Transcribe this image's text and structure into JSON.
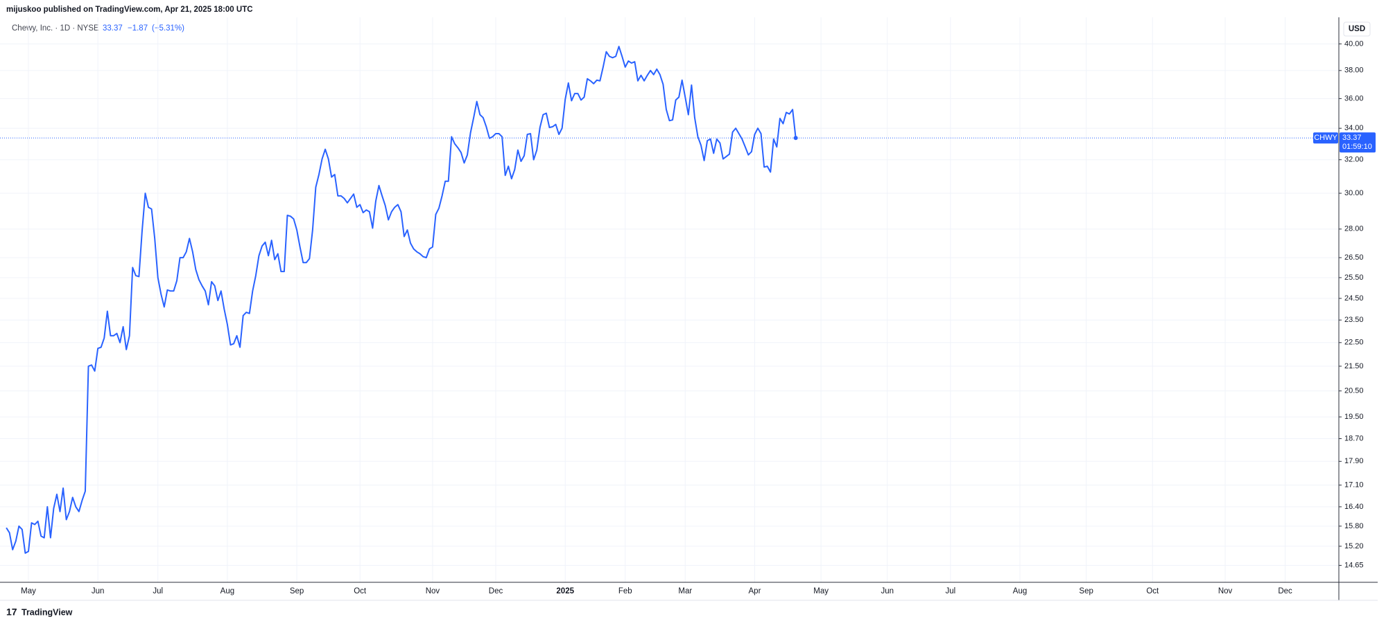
{
  "header": "mijuskoo published on TradingView.com, Apr 21, 2025 18:00 UTC",
  "legend": {
    "name": "Chewy, Inc. · 1D · NYSE",
    "last": "33.37",
    "change": "−1.87",
    "change_pct": "(−5.31%)"
  },
  "footer": "TradingView",
  "chart_data": {
    "type": "line",
    "log_scale": true,
    "grid": true,
    "currency": "USD",
    "price_label": {
      "value": "33.37",
      "countdown": "01:59:10"
    },
    "xlim": [
      -2,
      422
    ],
    "ylim": [
      14.18,
      42.1
    ],
    "xticks": [
      {
        "value": 7,
        "label": "May"
      },
      {
        "value": 29,
        "label": "Jun"
      },
      {
        "value": 48,
        "label": "Jul"
      },
      {
        "value": 70,
        "label": "Aug"
      },
      {
        "value": 92,
        "label": "Sep"
      },
      {
        "value": 112,
        "label": "Oct"
      },
      {
        "value": 135,
        "label": "Nov"
      },
      {
        "value": 155,
        "label": "Dec"
      },
      {
        "value": 177,
        "label": "2025"
      },
      {
        "value": 196,
        "label": "Feb"
      },
      {
        "value": 215,
        "label": "Mar"
      },
      {
        "value": 237,
        "label": "Apr"
      },
      {
        "value": 258,
        "label": "May"
      },
      {
        "value": 279,
        "label": "Jun"
      },
      {
        "value": 299,
        "label": "Jul"
      },
      {
        "value": 321,
        "label": "Aug"
      },
      {
        "value": 342,
        "label": "Sep"
      },
      {
        "value": 363,
        "label": "Oct"
      },
      {
        "value": 386,
        "label": "Nov"
      },
      {
        "value": 405,
        "label": "Dec"
      }
    ],
    "yticks": [
      {
        "value": 40,
        "label": "40.00"
      },
      {
        "value": 38,
        "label": "38.00"
      },
      {
        "value": 36,
        "label": "36.00"
      },
      {
        "value": 34,
        "label": "34.00"
      },
      {
        "value": 32,
        "label": "32.00"
      },
      {
        "value": 30,
        "label": "30.00"
      },
      {
        "value": 28,
        "label": "28.00"
      },
      {
        "value": 26.5,
        "label": "26.50"
      },
      {
        "value": 25.5,
        "label": "25.50"
      },
      {
        "value": 24.5,
        "label": "24.50"
      },
      {
        "value": 23.5,
        "label": "23.50"
      },
      {
        "value": 22.5,
        "label": "22.50"
      },
      {
        "value": 21.5,
        "label": "21.50"
      },
      {
        "value": 20.5,
        "label": "20.50"
      },
      {
        "value": 19.5,
        "label": "19.50"
      },
      {
        "value": 18.7,
        "label": "18.70"
      },
      {
        "value": 17.9,
        "label": "17.90"
      },
      {
        "value": 17.1,
        "label": "17.10"
      },
      {
        "value": 16.4,
        "label": "16.40"
      },
      {
        "value": 15.8,
        "label": "15.80"
      },
      {
        "value": 15.2,
        "label": "15.20"
      },
      {
        "value": 14.65,
        "label": "14.65"
      }
    ],
    "series": [
      {
        "name": "CHWY",
        "color": "#2962ff",
        "values": [
          15.75,
          15.6,
          15.1,
          15.35,
          15.8,
          15.7,
          15.0,
          15.05,
          15.9,
          15.85,
          15.95,
          15.5,
          15.45,
          16.4,
          15.45,
          16.35,
          16.8,
          16.25,
          17.0,
          16.0,
          16.25,
          16.7,
          16.4,
          16.25,
          16.6,
          16.9,
          21.5,
          21.55,
          21.3,
          22.25,
          22.3,
          22.7,
          23.9,
          22.8,
          22.8,
          22.9,
          22.5,
          23.2,
          22.2,
          22.8,
          26.0,
          25.6,
          25.55,
          27.9,
          30.0,
          29.2,
          29.1,
          27.5,
          25.5,
          24.7,
          24.1,
          24.9,
          24.85,
          24.85,
          25.35,
          26.5,
          26.5,
          26.8,
          27.5,
          26.8,
          25.9,
          25.4,
          25.1,
          24.85,
          24.2,
          25.3,
          25.1,
          24.4,
          24.85,
          24.0,
          23.3,
          22.4,
          22.45,
          22.8,
          22.3,
          23.7,
          23.85,
          23.8,
          24.85,
          25.6,
          26.6,
          27.1,
          27.3,
          26.6,
          27.4,
          26.4,
          26.7,
          25.8,
          25.8,
          28.75,
          28.7,
          28.55,
          27.95,
          27.05,
          26.25,
          26.25,
          26.45,
          27.95,
          30.35,
          31.1,
          32.05,
          32.65,
          32.05,
          30.95,
          31.1,
          29.85,
          29.85,
          29.7,
          29.45,
          29.7,
          29.95,
          29.2,
          29.35,
          28.9,
          29.05,
          28.95,
          28.05,
          29.55,
          30.45,
          29.85,
          29.3,
          28.5,
          28.95,
          29.2,
          29.35,
          28.95,
          27.6,
          27.95,
          27.25,
          26.95,
          26.8,
          26.7,
          26.55,
          26.5,
          26.95,
          27.05,
          28.8,
          29.15,
          29.85,
          30.7,
          30.7,
          33.45,
          33.0,
          32.75,
          32.45,
          31.8,
          32.3,
          33.7,
          34.7,
          35.8,
          34.9,
          34.7,
          34.1,
          33.35,
          33.45,
          33.65,
          33.65,
          33.45,
          31.05,
          31.6,
          30.85,
          31.4,
          32.6,
          31.9,
          32.25,
          33.6,
          33.65,
          32.0,
          32.6,
          34.05,
          34.9,
          35.0,
          34.05,
          34.1,
          34.25,
          33.6,
          34.0,
          35.95,
          37.1,
          35.85,
          36.35,
          36.35,
          35.9,
          36.1,
          37.4,
          37.25,
          37.05,
          37.3,
          37.25,
          38.25,
          39.4,
          39.05,
          38.95,
          39.05,
          39.8,
          39.05,
          38.25,
          38.7,
          38.55,
          38.65,
          37.25,
          37.65,
          37.25,
          37.65,
          38.0,
          37.7,
          38.1,
          37.7,
          37.0,
          35.25,
          34.5,
          34.55,
          35.9,
          36.1,
          37.3,
          36.1,
          34.9,
          36.95,
          34.7,
          33.45,
          32.9,
          31.95,
          33.2,
          33.3,
          32.4,
          33.3,
          33.05,
          32.05,
          32.2,
          32.35,
          33.75,
          34.0,
          33.65,
          33.3,
          32.8,
          32.3,
          32.5,
          33.6,
          34.0,
          33.65,
          31.55,
          31.6,
          31.25,
          33.3,
          32.8,
          34.65,
          34.3,
          35.05,
          34.95,
          35.25,
          33.37
        ]
      }
    ]
  }
}
